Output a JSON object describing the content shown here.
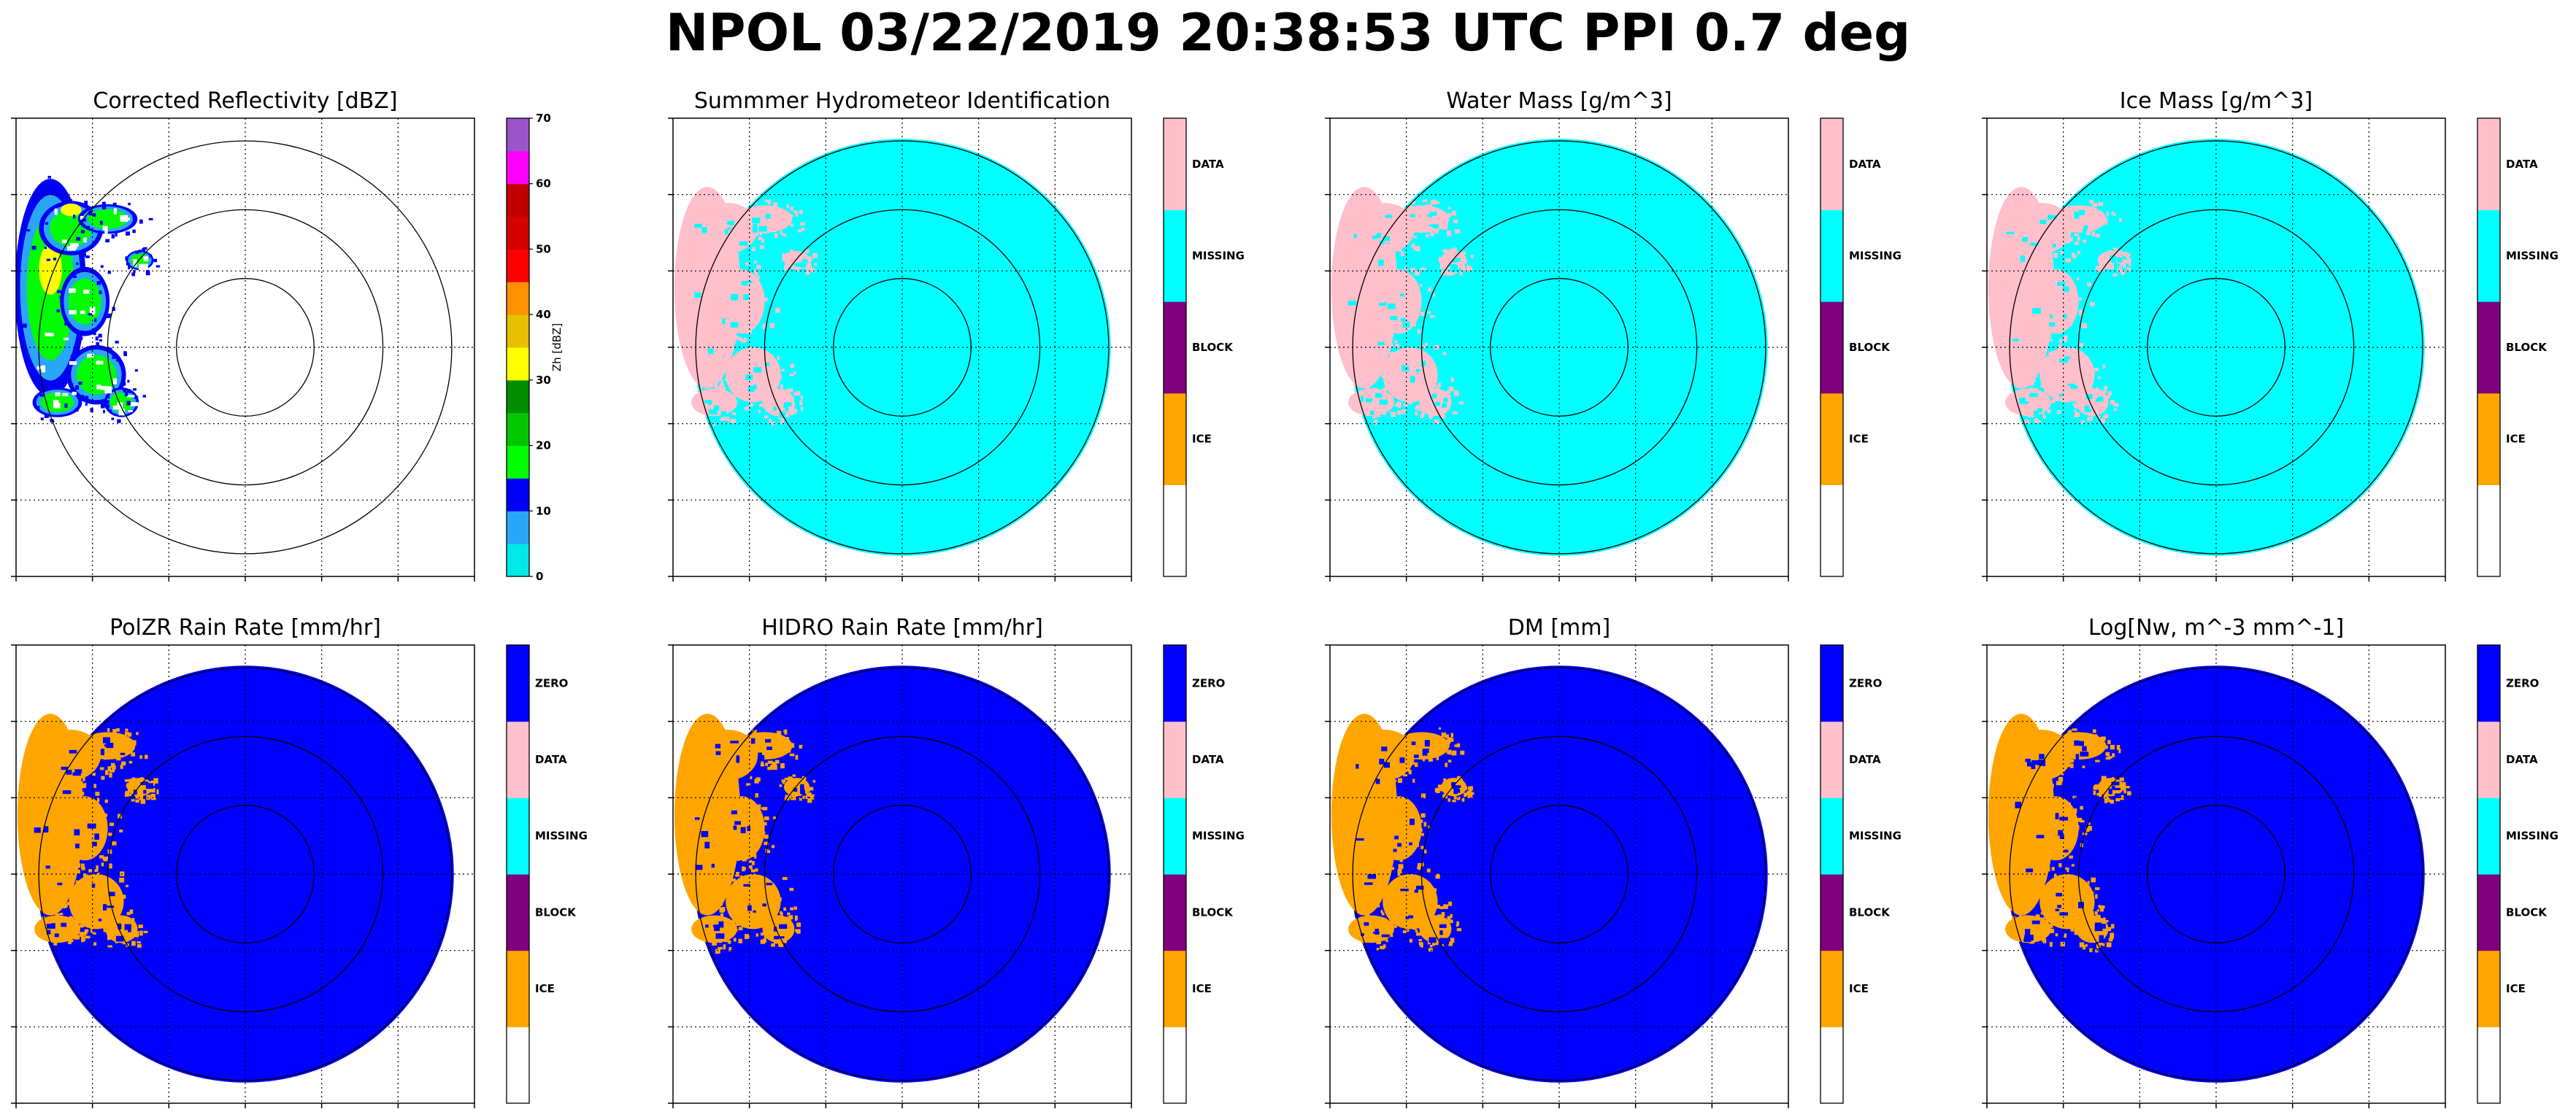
{
  "figure": {
    "title": "NPOL 03/22/2019 20:38:53 UTC PPI 0.7 deg"
  },
  "colors": {
    "ZERO": "#0000ff",
    "DATA": "#ffc0cb",
    "MISSING": "#00ffff",
    "BLOCK": "#800080",
    "ICE": "#ffa500",
    "blank": "#ffffff"
  },
  "chart_data": [
    {
      "type": "heatmap",
      "title": "Corrected Reflectivity [dBZ]",
      "field": "reflectivity",
      "colorbar": {
        "label": "Zh [dBZ]",
        "ticks": [
          0,
          10,
          20,
          30,
          40,
          50,
          60,
          70
        ],
        "range": [
          0,
          70
        ],
        "colors": [
          "#00e8e8",
          "#2aa6f8",
          "#0000f6",
          "#02fc02",
          "#01c501",
          "#008e00",
          "#ffff00",
          "#e7c000",
          "#ff9000",
          "#ff0000",
          "#d60000",
          "#c00000",
          "#ff00ff",
          "#9955c9"
        ]
      },
      "range_rings": 3,
      "grid": true
    },
    {
      "type": "heatmap",
      "title": "Summmer Hydrometeor Identification",
      "field": "category",
      "background_category": "MISSING",
      "echo_category": "DATA",
      "colorbar": {
        "categories": [
          "blank",
          "ICE",
          "BLOCK",
          "MISSING",
          "DATA"
        ],
        "labels": [
          "ICE",
          "BLOCK",
          "MISSING",
          "DATA"
        ]
      },
      "range_rings": 3,
      "grid": true
    },
    {
      "type": "heatmap",
      "title": "Water Mass [g/m^3]",
      "field": "category",
      "background_category": "MISSING",
      "echo_category": "DATA",
      "colorbar": {
        "categories": [
          "blank",
          "ICE",
          "BLOCK",
          "MISSING",
          "DATA"
        ],
        "labels": [
          "ICE",
          "BLOCK",
          "MISSING",
          "DATA"
        ]
      },
      "range_rings": 3,
      "grid": true
    },
    {
      "type": "heatmap",
      "title": "Ice Mass [g/m^3]",
      "field": "category",
      "background_category": "MISSING",
      "echo_category": "DATA",
      "colorbar": {
        "categories": [
          "blank",
          "ICE",
          "BLOCK",
          "MISSING",
          "DATA"
        ],
        "labels": [
          "ICE",
          "BLOCK",
          "MISSING",
          "DATA"
        ]
      },
      "range_rings": 3,
      "grid": true
    },
    {
      "type": "heatmap",
      "title": "PolZR Rain Rate [mm/hr]",
      "field": "category",
      "background_category": "ZERO",
      "echo_category": "ICE",
      "colorbar": {
        "categories": [
          "blank",
          "ICE",
          "BLOCK",
          "MISSING",
          "DATA",
          "ZERO"
        ],
        "labels": [
          "ICE",
          "BLOCK",
          "MISSING",
          "DATA",
          "ZERO"
        ]
      },
      "range_rings": 3,
      "grid": true
    },
    {
      "type": "heatmap",
      "title": "HIDRO Rain Rate [mm/hr]",
      "field": "category",
      "background_category": "ZERO",
      "echo_category": "ICE",
      "colorbar": {
        "categories": [
          "blank",
          "ICE",
          "BLOCK",
          "MISSING",
          "DATA",
          "ZERO"
        ],
        "labels": [
          "ICE",
          "BLOCK",
          "MISSING",
          "DATA",
          "ZERO"
        ]
      },
      "range_rings": 3,
      "grid": true
    },
    {
      "type": "heatmap",
      "title": "DM [mm]",
      "field": "category",
      "background_category": "ZERO",
      "echo_category": "ICE",
      "colorbar": {
        "categories": [
          "blank",
          "ICE",
          "BLOCK",
          "MISSING",
          "DATA",
          "ZERO"
        ],
        "labels": [
          "ICE",
          "BLOCK",
          "MISSING",
          "DATA",
          "ZERO"
        ]
      },
      "range_rings": 3,
      "grid": true
    },
    {
      "type": "heatmap",
      "title": "Log[Nw, m^-3 mm^-1]",
      "field": "category",
      "background_category": "ZERO",
      "echo_category": "ICE",
      "colorbar": {
        "categories": [
          "blank",
          "ICE",
          "BLOCK",
          "MISSING",
          "DATA",
          "ZERO"
        ],
        "labels": [
          "ICE",
          "BLOCK",
          "MISSING",
          "DATA",
          "ZERO"
        ]
      },
      "range_rings": 3,
      "grid": true
    }
  ]
}
